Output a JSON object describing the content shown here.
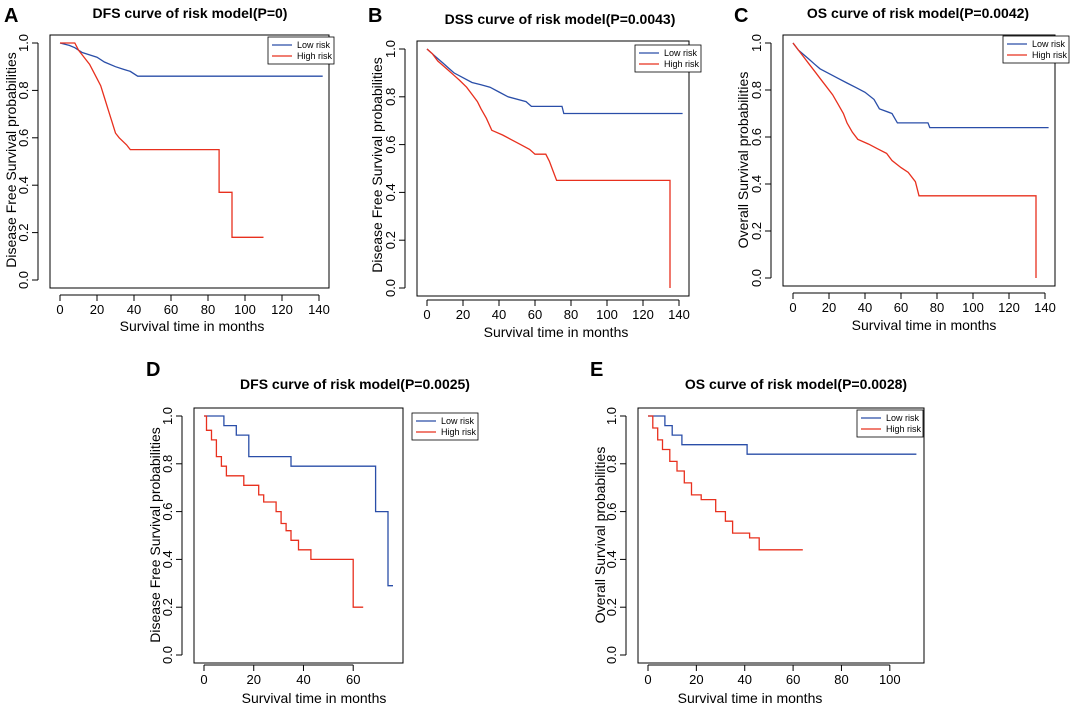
{
  "legend": {
    "low_risk": "Low risk",
    "high_risk": "High risk"
  },
  "colors": {
    "low_risk": "#2a4ea8",
    "high_risk": "#e8301e",
    "axis": "#000000"
  },
  "chart_data": [
    {
      "type": "line",
      "panel": "A",
      "title": "DFS curve of risk model(P=0)",
      "xlabel": "Survival time in months",
      "ylabel": "Disease Free Survival probabilities",
      "xlim": [
        0,
        140
      ],
      "ylim": [
        0,
        1.0
      ],
      "xticks": [
        0,
        20,
        40,
        60,
        80,
        100,
        120,
        140
      ],
      "yticks": [
        0.0,
        0.2,
        0.4,
        0.6,
        0.8,
        1.0
      ],
      "legend_position": "top-right",
      "series": [
        {
          "name": "Low risk",
          "color": "#2a4ea8",
          "points": [
            [
              0,
              1.0
            ],
            [
              5,
              0.99
            ],
            [
              8,
              0.98
            ],
            [
              12,
              0.96
            ],
            [
              16,
              0.95
            ],
            [
              20,
              0.94
            ],
            [
              24,
              0.92
            ],
            [
              30,
              0.9
            ],
            [
              34,
              0.89
            ],
            [
              38,
              0.88
            ],
            [
              42,
              0.86
            ],
            [
              142,
              0.86
            ]
          ]
        },
        {
          "name": "High risk",
          "color": "#e8301e",
          "points": [
            [
              0,
              1.0
            ],
            [
              8,
              1.0
            ],
            [
              10,
              0.97
            ],
            [
              12,
              0.95
            ],
            [
              14,
              0.93
            ],
            [
              16,
              0.91
            ],
            [
              18,
              0.88
            ],
            [
              20,
              0.85
            ],
            [
              22,
              0.82
            ],
            [
              24,
              0.77
            ],
            [
              26,
              0.72
            ],
            [
              28,
              0.67
            ],
            [
              30,
              0.62
            ],
            [
              32,
              0.6
            ],
            [
              36,
              0.57
            ],
            [
              38,
              0.55
            ],
            [
              40,
              0.55
            ],
            [
              86,
              0.55
            ],
            [
              86,
              0.37
            ],
            [
              93,
              0.37
            ],
            [
              93,
              0.18
            ],
            [
              110,
              0.18
            ]
          ]
        }
      ]
    },
    {
      "type": "line",
      "panel": "B",
      "title": "DSS curve of risk model(P=0.0043)",
      "xlabel": "Survival time in months",
      "ylabel": "Disease Free Survival probabilities",
      "xlim": [
        0,
        140
      ],
      "ylim": [
        0,
        1.0
      ],
      "xticks": [
        0,
        20,
        40,
        60,
        80,
        100,
        120,
        140
      ],
      "yticks": [
        0.0,
        0.2,
        0.4,
        0.6,
        0.8,
        1.0
      ],
      "legend_position": "top-right",
      "series": [
        {
          "name": "Low risk",
          "color": "#2a4ea8",
          "points": [
            [
              0,
              1.0
            ],
            [
              3,
              0.98
            ],
            [
              6,
              0.96
            ],
            [
              9,
              0.94
            ],
            [
              12,
              0.92
            ],
            [
              15,
              0.9
            ],
            [
              20,
              0.88
            ],
            [
              25,
              0.86
            ],
            [
              30,
              0.85
            ],
            [
              35,
              0.84
            ],
            [
              40,
              0.82
            ],
            [
              45,
              0.8
            ],
            [
              55,
              0.78
            ],
            [
              58,
              0.76
            ],
            [
              75,
              0.76
            ],
            [
              76,
              0.73
            ],
            [
              142,
              0.73
            ]
          ]
        },
        {
          "name": "High risk",
          "color": "#e8301e",
          "points": [
            [
              0,
              1.0
            ],
            [
              3,
              0.98
            ],
            [
              6,
              0.95
            ],
            [
              9,
              0.93
            ],
            [
              12,
              0.91
            ],
            [
              15,
              0.89
            ],
            [
              18,
              0.87
            ],
            [
              22,
              0.84
            ],
            [
              25,
              0.81
            ],
            [
              28,
              0.78
            ],
            [
              30,
              0.75
            ],
            [
              33,
              0.71
            ],
            [
              36,
              0.66
            ],
            [
              42,
              0.64
            ],
            [
              47,
              0.62
            ],
            [
              52,
              0.6
            ],
            [
              57,
              0.58
            ],
            [
              60,
              0.56
            ],
            [
              66,
              0.56
            ],
            [
              68,
              0.53
            ],
            [
              70,
              0.49
            ],
            [
              72,
              0.45
            ],
            [
              135,
              0.45
            ],
            [
              135,
              0.0
            ]
          ]
        }
      ]
    },
    {
      "type": "line",
      "panel": "C",
      "title": "OS curve of risk model(P=0.0042)",
      "xlabel": "Survival time in months",
      "ylabel": "Overall Survival probabilities",
      "xlim": [
        0,
        140
      ],
      "ylim": [
        0,
        1.0
      ],
      "xticks": [
        0,
        20,
        40,
        60,
        80,
        100,
        120,
        140
      ],
      "yticks": [
        0.0,
        0.2,
        0.4,
        0.6,
        0.8,
        1.0
      ],
      "legend_position": "top-right",
      "series": [
        {
          "name": "Low risk",
          "color": "#2a4ea8",
          "points": [
            [
              0,
              1.0
            ],
            [
              3,
              0.97
            ],
            [
              6,
              0.95
            ],
            [
              9,
              0.93
            ],
            [
              12,
              0.91
            ],
            [
              15,
              0.89
            ],
            [
              20,
              0.87
            ],
            [
              25,
              0.85
            ],
            [
              30,
              0.83
            ],
            [
              35,
              0.81
            ],
            [
              40,
              0.79
            ],
            [
              45,
              0.76
            ],
            [
              48,
              0.72
            ],
            [
              55,
              0.7
            ],
            [
              58,
              0.66
            ],
            [
              75,
              0.66
            ],
            [
              76,
              0.64
            ],
            [
              142,
              0.64
            ]
          ]
        },
        {
          "name": "High risk",
          "color": "#e8301e",
          "points": [
            [
              0,
              1.0
            ],
            [
              3,
              0.97
            ],
            [
              6,
              0.94
            ],
            [
              9,
              0.91
            ],
            [
              12,
              0.88
            ],
            [
              15,
              0.85
            ],
            [
              18,
              0.82
            ],
            [
              22,
              0.78
            ],
            [
              25,
              0.74
            ],
            [
              28,
              0.7
            ],
            [
              30,
              0.66
            ],
            [
              33,
              0.62
            ],
            [
              36,
              0.59
            ],
            [
              42,
              0.57
            ],
            [
              47,
              0.55
            ],
            [
              52,
              0.53
            ],
            [
              55,
              0.5
            ],
            [
              60,
              0.47
            ],
            [
              64,
              0.45
            ],
            [
              68,
              0.41
            ],
            [
              70,
              0.35
            ],
            [
              135,
              0.35
            ],
            [
              135,
              0.0
            ]
          ]
        }
      ]
    },
    {
      "type": "line",
      "panel": "D",
      "title": "DFS curve of risk model(P=0.0025)",
      "xlabel": "Survival time in months",
      "ylabel": "Disease Free Survival probabilities",
      "xlim": [
        0,
        76
      ],
      "ylim": [
        0,
        1.0
      ],
      "xticks": [
        0,
        20,
        40,
        60
      ],
      "yticks": [
        0.0,
        0.2,
        0.4,
        0.6,
        0.8,
        1.0
      ],
      "legend_position": "top-right",
      "series": [
        {
          "name": "Low risk",
          "color": "#2a4ea8",
          "points": [
            [
              0,
              1.0
            ],
            [
              8,
              1.0
            ],
            [
              8,
              0.96
            ],
            [
              13,
              0.96
            ],
            [
              13,
              0.92
            ],
            [
              18,
              0.92
            ],
            [
              18,
              0.83
            ],
            [
              35,
              0.83
            ],
            [
              35,
              0.79
            ],
            [
              69,
              0.79
            ],
            [
              69,
              0.6
            ],
            [
              74,
              0.6
            ],
            [
              74,
              0.29
            ],
            [
              76,
              0.29
            ]
          ]
        },
        {
          "name": "High risk",
          "color": "#e8301e",
          "points": [
            [
              0,
              1.0
            ],
            [
              1,
              1.0
            ],
            [
              1,
              0.94
            ],
            [
              3,
              0.94
            ],
            [
              3,
              0.9
            ],
            [
              5,
              0.9
            ],
            [
              5,
              0.83
            ],
            [
              7,
              0.83
            ],
            [
              7,
              0.79
            ],
            [
              9,
              0.79
            ],
            [
              9,
              0.75
            ],
            [
              16,
              0.75
            ],
            [
              16,
              0.71
            ],
            [
              22,
              0.71
            ],
            [
              22,
              0.67
            ],
            [
              24,
              0.67
            ],
            [
              24,
              0.64
            ],
            [
              29,
              0.64
            ],
            [
              29,
              0.6
            ],
            [
              31,
              0.6
            ],
            [
              31,
              0.55
            ],
            [
              33,
              0.55
            ],
            [
              33,
              0.52
            ],
            [
              35,
              0.52
            ],
            [
              35,
              0.48
            ],
            [
              38,
              0.48
            ],
            [
              38,
              0.44
            ],
            [
              43,
              0.44
            ],
            [
              43,
              0.4
            ],
            [
              60,
              0.4
            ],
            [
              60,
              0.2
            ],
            [
              64,
              0.2
            ]
          ]
        }
      ]
    },
    {
      "type": "line",
      "panel": "E",
      "title": "OS curve of risk model(P=0.0028)",
      "xlabel": "Survival time in months",
      "ylabel": "Overall Survival probabilities",
      "xlim": [
        0,
        110
      ],
      "ylim": [
        0,
        1.0
      ],
      "xticks": [
        0,
        20,
        40,
        60,
        80,
        100
      ],
      "yticks": [
        0.0,
        0.2,
        0.4,
        0.6,
        0.8,
        1.0
      ],
      "legend_position": "top-right",
      "series": [
        {
          "name": "Low risk",
          "color": "#2a4ea8",
          "points": [
            [
              0,
              1.0
            ],
            [
              7,
              1.0
            ],
            [
              7,
              0.96
            ],
            [
              10,
              0.96
            ],
            [
              10,
              0.92
            ],
            [
              14,
              0.92
            ],
            [
              14,
              0.88
            ],
            [
              41,
              0.88
            ],
            [
              41,
              0.84
            ],
            [
              111,
              0.84
            ]
          ]
        },
        {
          "name": "High risk",
          "color": "#e8301e",
          "points": [
            [
              0,
              1.0
            ],
            [
              2,
              1.0
            ],
            [
              2,
              0.95
            ],
            [
              4,
              0.95
            ],
            [
              4,
              0.9
            ],
            [
              6,
              0.9
            ],
            [
              6,
              0.86
            ],
            [
              9,
              0.86
            ],
            [
              9,
              0.81
            ],
            [
              12,
              0.81
            ],
            [
              12,
              0.77
            ],
            [
              15,
              0.77
            ],
            [
              15,
              0.72
            ],
            [
              18,
              0.72
            ],
            [
              18,
              0.67
            ],
            [
              22,
              0.67
            ],
            [
              22,
              0.65
            ],
            [
              28,
              0.65
            ],
            [
              28,
              0.6
            ],
            [
              32,
              0.6
            ],
            [
              32,
              0.56
            ],
            [
              35,
              0.56
            ],
            [
              35,
              0.51
            ],
            [
              42,
              0.51
            ],
            [
              42,
              0.49
            ],
            [
              46,
              0.49
            ],
            [
              46,
              0.44
            ],
            [
              64,
              0.44
            ]
          ]
        }
      ]
    }
  ]
}
